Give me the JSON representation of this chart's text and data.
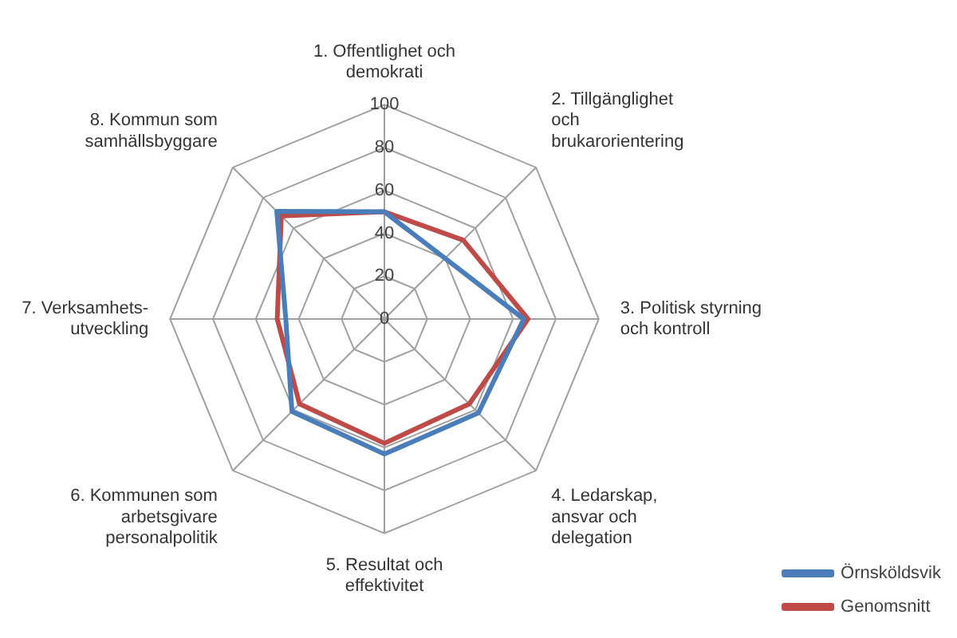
{
  "chart_data": {
    "type": "radar",
    "categories": [
      "1. Offentlighet och\ndemokrati",
      "2. Tillgänglighet\noch\nbrukarorientering",
      "3. Politisk styrning\noch kontroll",
      "4. Ledarskap,\nansvar och\ndelegation",
      "5. Resultat och\neffektivitet",
      "6. Kommunen som\narbetsgivare\npersonalpolitik",
      "7. Verksamhets-\nutveckling",
      "8. Kommun som\nsamhällsbyggare"
    ],
    "series": [
      {
        "name": "Örnsköldsvik",
        "color": "#4a7ebb",
        "values": [
          50,
          40,
          65,
          62,
          63,
          61,
          46,
          71
        ]
      },
      {
        "name": "Genomsnitt",
        "color": "#be4b48",
        "values": [
          50,
          52,
          67,
          56,
          58,
          56,
          50,
          68
        ]
      }
    ],
    "ylim": [
      0,
      100
    ],
    "yticks": [
      0,
      20,
      40,
      60,
      80,
      100
    ],
    "grid": true,
    "legend": "right",
    "marker": "none"
  }
}
